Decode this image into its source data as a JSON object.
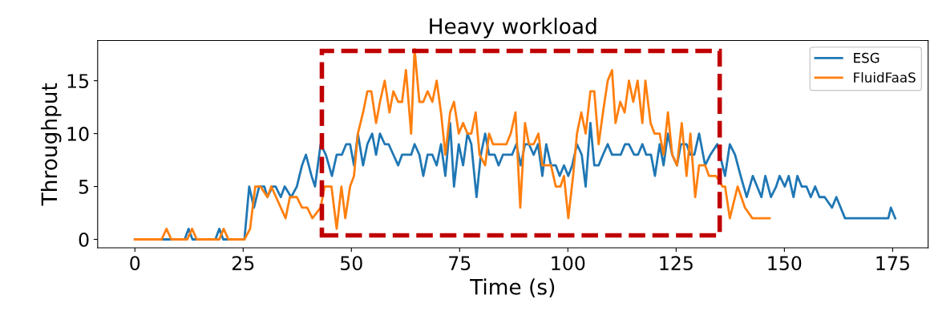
{
  "chart_data": {
    "type": "line",
    "title": "Heavy workload",
    "xlabel": "Time (s)",
    "ylabel": "Throughput",
    "xlim": [
      -8.6,
      183.2
    ],
    "xticks": [
      0,
      25,
      50,
      75,
      100,
      125,
      150,
      175
    ],
    "ylim": [
      -0.8,
      18.8
    ],
    "yticks": [
      0,
      5,
      10,
      15
    ],
    "grid": false,
    "legend": "top right",
    "line_style": "solid",
    "marker": "none",
    "series": [
      {
        "name": "ESG",
        "color": "#1f77b4",
        "x": [
          0,
          11.5,
          12.4,
          13.3,
          18.6,
          19.5,
          20.4,
          25.3,
          26.4,
          27.5,
          28.7,
          29.9,
          30.6,
          31.8,
          32.5,
          33.7,
          34.6,
          36.1,
          37.4,
          38.6,
          39.5,
          40.8,
          41.6,
          42.9,
          44.1,
          45.5,
          46.6,
          47.8,
          48.8,
          49.7,
          50.6,
          51.5,
          52.7,
          53.7,
          54.8,
          55.7,
          56.6,
          57.7,
          58.6,
          59.7,
          60.8,
          61.7,
          62.6,
          63.8,
          64.6,
          65.7,
          66.6,
          67.6,
          68.7,
          69.7,
          70.7,
          71.7,
          72.8,
          73.7,
          74.8,
          75.8,
          76.8,
          77.7,
          78.9,
          79.9,
          80.9,
          81.8,
          83.1,
          84,
          85,
          86.2,
          87.1,
          88.1,
          89.1,
          90.1,
          91,
          92.1,
          93.1,
          94.1,
          95,
          96.1,
          97.2,
          98.1,
          99.1,
          100.1,
          101,
          102.1,
          103.2,
          104.1,
          105.2,
          106.1,
          107.1,
          108.1,
          109.2,
          110.2,
          111.3,
          112.2,
          113.2,
          114.1,
          115.3,
          116.2,
          117.2,
          118.1,
          119.2,
          120.1,
          121.2,
          122.1,
          123.1,
          124.1,
          125.2,
          126.1,
          127.4,
          128.3,
          129.2,
          130.3,
          131.7,
          132.9,
          134.5,
          136.3,
          137.4,
          138.6,
          139.9,
          141.3,
          142.7,
          143.7,
          144.7,
          145.6,
          146.9,
          148.1,
          148.9,
          150.1,
          151,
          152.1,
          153,
          154,
          155.1,
          156.1,
          157.1,
          158.1,
          159.3,
          161,
          162,
          164,
          174,
          174.6,
          175.6
        ],
        "values": [
          0,
          0,
          1,
          0,
          0,
          1,
          0,
          0,
          5,
          3,
          5,
          5,
          4,
          5,
          5,
          4,
          5,
          4,
          5,
          7,
          8,
          6,
          5,
          9,
          8,
          6,
          8,
          8,
          9,
          9,
          7,
          10,
          7,
          9,
          10,
          8,
          10,
          9,
          9,
          8,
          7,
          8,
          8,
          8,
          9,
          8,
          6,
          8,
          8,
          7,
          9,
          6,
          11,
          5,
          9,
          7,
          10,
          9,
          4,
          8,
          10,
          8,
          8,
          7,
          8,
          8,
          8,
          9,
          7,
          9,
          9,
          8,
          9,
          6,
          9,
          7,
          7,
          6,
          7,
          6,
          7,
          9,
          8,
          5,
          11,
          7,
          7,
          8,
          9,
          8,
          8,
          8,
          9,
          9,
          8,
          8,
          9,
          8,
          8,
          6,
          9,
          7,
          10,
          8,
          7,
          9,
          9,
          8,
          8,
          10,
          7,
          8,
          9,
          6,
          9,
          8,
          6,
          4,
          6,
          5,
          4,
          6,
          4,
          5,
          6,
          5,
          6,
          4,
          6,
          5,
          5,
          4,
          5,
          4,
          4,
          3,
          4,
          2,
          2,
          3,
          2
        ]
      },
      {
        "name": "FluidFaaS",
        "color": "#ff7f0e",
        "x": [
          0,
          6.2,
          7.3,
          8.4,
          12.1,
          13.2,
          14.3,
          19.5,
          20.5,
          21.6,
          25.3,
          26.6,
          27.8,
          29,
          30.6,
          31.5,
          34.8,
          35.8,
          37.4,
          38.6,
          39.8,
          41,
          42.9,
          43.8,
          45.4,
          46.6,
          47.7,
          48.6,
          49.7,
          50.6,
          51.5,
          52.7,
          53.7,
          54.6,
          55.7,
          56.6,
          57.7,
          58.8,
          59.7,
          60.8,
          61.7,
          62.6,
          63.8,
          64.6,
          65.7,
          66.6,
          67.6,
          68.7,
          69.7,
          70.7,
          71.7,
          72.8,
          73.7,
          74.8,
          75.8,
          76.8,
          77.7,
          78.7,
          79.6,
          80.9,
          81.8,
          82.7,
          84,
          85.8,
          86.8,
          87.9,
          89,
          90.1,
          91,
          92.1,
          93.2,
          94.1,
          95,
          96.1,
          97.2,
          98.3,
          99.1,
          100.1,
          101.2,
          102.1,
          103.1,
          104.1,
          105.2,
          106.1,
          107.1,
          108.1,
          109.2,
          110.2,
          111,
          112.1,
          113.1,
          114.1,
          115.1,
          116.1,
          117.2,
          117.9,
          119.1,
          120,
          121.2,
          122.1,
          123.1,
          124.1,
          125.2,
          126.3,
          127.4,
          128.3,
          129.4,
          130.3,
          131.7,
          132.6,
          134.2,
          135.7,
          136.3,
          137.4,
          139.2,
          140.9,
          142.6,
          146.6
        ],
        "values": [
          0,
          0,
          1,
          0,
          0,
          1,
          0,
          0,
          1,
          0,
          0,
          1,
          5,
          5,
          4,
          5,
          2,
          4,
          4,
          3,
          3,
          2,
          3,
          5,
          5,
          1,
          5,
          2,
          5,
          6,
          10,
          12,
          14,
          14,
          11,
          13,
          15,
          12,
          14,
          13,
          13,
          16,
          10,
          18,
          13,
          13,
          14,
          13,
          15,
          12,
          8,
          12,
          13,
          10,
          11,
          10,
          10,
          12,
          8,
          7,
          10,
          9,
          9,
          9,
          10,
          12,
          3,
          11,
          9,
          9,
          10,
          7,
          7,
          7,
          5,
          5,
          6,
          2,
          6,
          10,
          12,
          10,
          14,
          14,
          9,
          12,
          15,
          16,
          11,
          13,
          12,
          15,
          13,
          15,
          11,
          15,
          11,
          10,
          10,
          8,
          12,
          8,
          7,
          11,
          6,
          10,
          4,
          7,
          7,
          6,
          6,
          5,
          5,
          2,
          5,
          3,
          2,
          2
        ]
      }
    ]
  }
}
